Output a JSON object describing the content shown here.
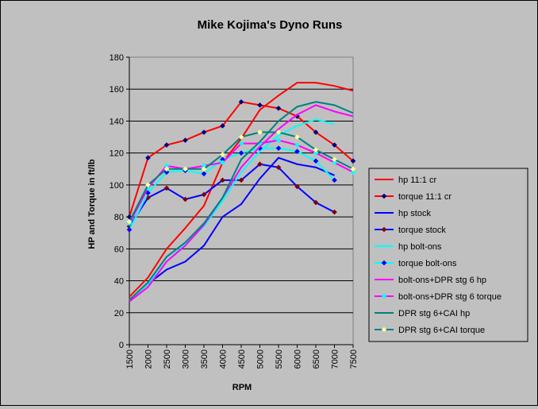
{
  "chart_data": {
    "type": "line",
    "title": "Mike Kojima's Dyno Runs",
    "xlabel": "RPM",
    "ylabel": "HP and Torque in ft/lb",
    "x": [
      1500,
      2000,
      2500,
      3000,
      3500,
      4000,
      4500,
      5000,
      5500,
      6000,
      6500,
      7000,
      7500
    ],
    "xlim": [
      1500,
      7500
    ],
    "ylim": [
      0,
      180
    ],
    "yticks": [
      "0",
      "20",
      "40",
      "60",
      "80",
      "100",
      "120",
      "140",
      "160",
      "180"
    ],
    "xticks": [
      "1500",
      "2000",
      "2500",
      "3000",
      "3500",
      "4000",
      "4500",
      "5000",
      "5500",
      "6000",
      "6500",
      "7000",
      "7500"
    ],
    "grid": true,
    "legend_position": "right",
    "plot_background": "#c0c0c0",
    "series": [
      {
        "name": "hp 11:1 cr",
        "color": "#ff0000",
        "marker": "none",
        "values": [
          30,
          42,
          60,
          73,
          87,
          114,
          129,
          147,
          156,
          164,
          164,
          162,
          159
        ]
      },
      {
        "name": "torque 11:1 cr",
        "color": "#ff0000",
        "marker": "diamond",
        "marker_color": "#000080",
        "values": [
          80,
          117,
          125,
          128,
          133,
          137,
          152,
          150,
          148,
          143,
          133,
          125,
          115
        ]
      },
      {
        "name": "hp stock",
        "color": "#0000ff",
        "marker": "none",
        "values": [
          28,
          38,
          47,
          52,
          62,
          80,
          88,
          104,
          117,
          113,
          111,
          106,
          null
        ]
      },
      {
        "name": "torque stock",
        "color": "#0000ff",
        "marker": "diamond",
        "marker_color": "#800000",
        "values": [
          74,
          92,
          98,
          91,
          94,
          103,
          103,
          113,
          111,
          99,
          89,
          83,
          null
        ]
      },
      {
        "name": "hp bolt-ons",
        "color": "#00ffff",
        "marker": "none",
        "values": [
          28,
          38,
          52,
          63,
          74,
          90,
          108,
          121,
          131,
          137,
          141,
          138,
          null
        ]
      },
      {
        "name": "torque bolt-ons",
        "color": "#00ffff",
        "marker": "diamond",
        "marker_color": "#0000ff",
        "values": [
          72,
          95,
          108,
          109,
          107,
          116,
          120,
          123,
          123,
          121,
          115,
          103,
          null
        ]
      },
      {
        "name": "bolt-ons+DPR stg 6 hp",
        "color": "#ff00ff",
        "marker": "none",
        "values": [
          27,
          36,
          52,
          62,
          75,
          92,
          111,
          124,
          135,
          144,
          150,
          146,
          143
        ]
      },
      {
        "name": "bolt-ons+DPR stg 6 torque",
        "color": "#ff00ff",
        "marker": "diamond",
        "marker_color": "#00ffff",
        "values": [
          76,
          98,
          112,
          110,
          112,
          114,
          126,
          126,
          128,
          125,
          120,
          114,
          108
        ]
      },
      {
        "name": "DPR stg 6+CAI hp",
        "color": "#008080",
        "marker": "none",
        "values": [
          28,
          39,
          55,
          64,
          76,
          92,
          116,
          127,
          140,
          149,
          152,
          150,
          145
        ]
      },
      {
        "name": "DPR stg 6+CAI torque",
        "color": "#008080",
        "marker": "diamond",
        "marker_color": "#ffff99",
        "values": [
          77,
          100,
          110,
          110,
          110,
          119,
          130,
          133,
          133,
          130,
          122,
          116,
          110
        ]
      }
    ]
  }
}
